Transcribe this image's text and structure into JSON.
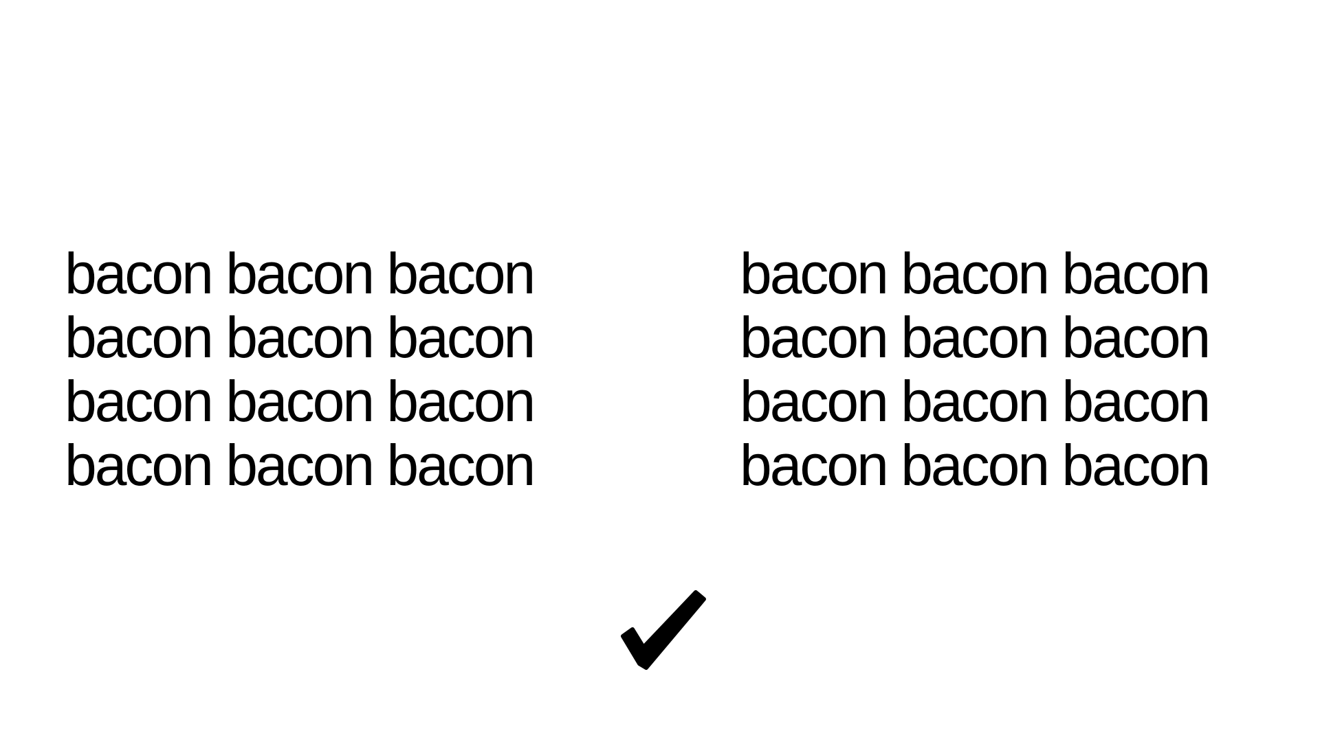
{
  "slide": {
    "left_block": {
      "lines": [
        "bacon bacon bacon",
        "bacon bacon bacon",
        "bacon bacon bacon",
        "bacon bacon bacon"
      ]
    },
    "right_block": {
      "lines": [
        "bacon bacon bacon",
        "bacon bacon bacon",
        "bacon bacon bacon",
        "bacon bacon bacon"
      ]
    },
    "checkmark_icon": "checkmark-icon",
    "colors": {
      "background": "#ffffff",
      "text": "#000000"
    }
  }
}
